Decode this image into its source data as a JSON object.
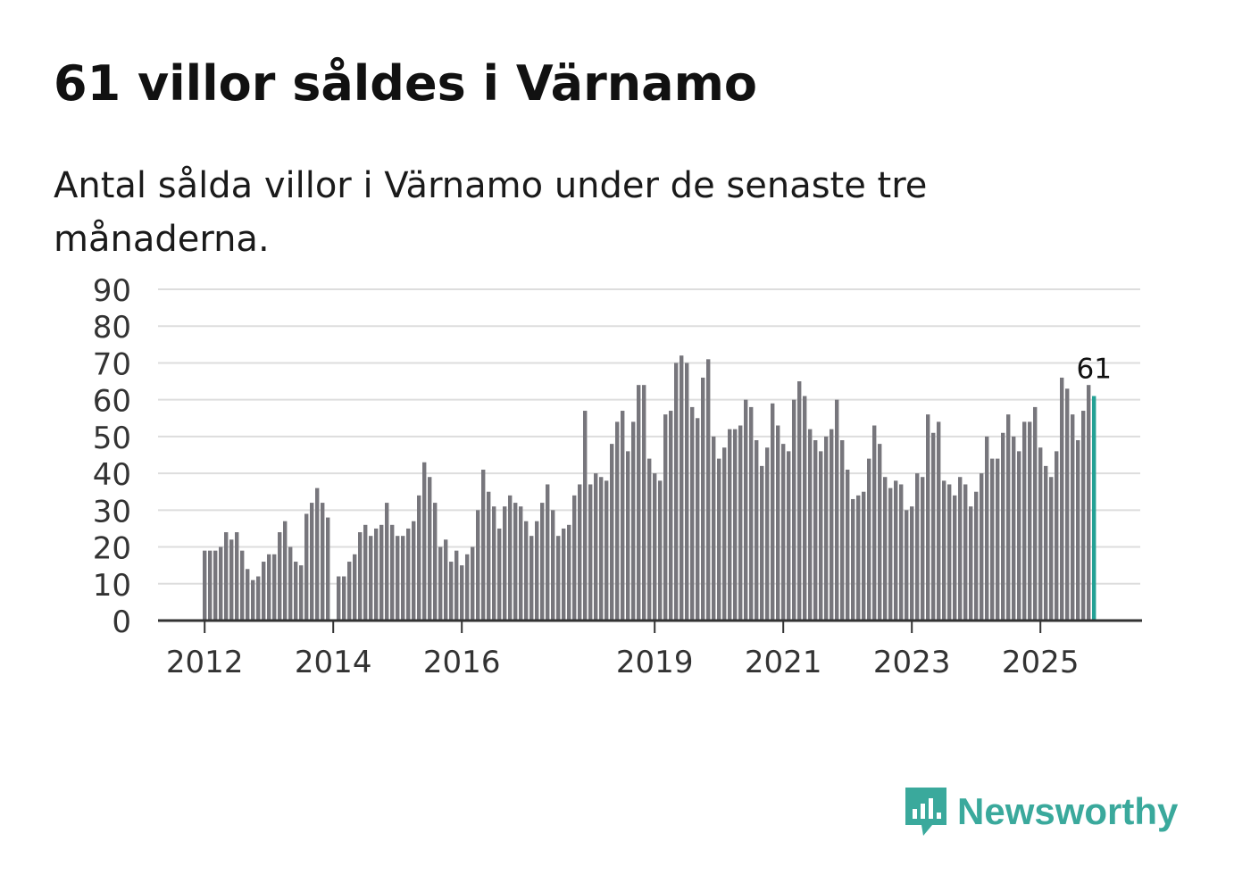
{
  "title": "61 villor såldes i Värnamo",
  "subtitle": "Antal sålda villor i Värnamo under de senaste tre månaderna.",
  "brand": {
    "name": "Newsworthy",
    "color": "#3aa99c"
  },
  "colors": {
    "bar": "#77767c",
    "highlight": "#24a195",
    "grid": "#dddddd",
    "axis": "#333333"
  },
  "chart_data": {
    "type": "bar",
    "title": "61 villor såldes i Värnamo",
    "xlabel": "",
    "ylabel": "",
    "ylim": [
      0,
      90
    ],
    "yticks": [
      0,
      10,
      20,
      30,
      40,
      50,
      60,
      70,
      80,
      90
    ],
    "xticks": [
      {
        "label": "2012",
        "index": 0
      },
      {
        "label": "2014",
        "index": 24
      },
      {
        "label": "2016",
        "index": 48
      },
      {
        "label": "2019",
        "index": 84
      },
      {
        "label": "2021",
        "index": 108
      },
      {
        "label": "2023",
        "index": 132
      },
      {
        "label": "2025",
        "index": 156
      }
    ],
    "start": "2012-01",
    "values": [
      19,
      19,
      19,
      20,
      24,
      22,
      24,
      19,
      14,
      11,
      12,
      16,
      18,
      18,
      24,
      27,
      20,
      16,
      15,
      29,
      32,
      36,
      32,
      28,
      0,
      12,
      12,
      16,
      18,
      24,
      26,
      23,
      25,
      26,
      32,
      26,
      23,
      23,
      25,
      27,
      34,
      43,
      39,
      32,
      20,
      22,
      16,
      19,
      15,
      18,
      20,
      30,
      41,
      35,
      31,
      25,
      31,
      34,
      32,
      31,
      27,
      23,
      27,
      32,
      37,
      30,
      23,
      25,
      26,
      34,
      37,
      57,
      37,
      40,
      39,
      38,
      48,
      54,
      57,
      46,
      54,
      64,
      64,
      44,
      40,
      38,
      56,
      57,
      70,
      72,
      70,
      58,
      55,
      66,
      71,
      50,
      44,
      47,
      52,
      52,
      53,
      60,
      58,
      49,
      42,
      47,
      59,
      53,
      48,
      46,
      60,
      65,
      61,
      52,
      49,
      46,
      50,
      52,
      60,
      49,
      41,
      33,
      34,
      35,
      44,
      53,
      48,
      39,
      36,
      38,
      37,
      30,
      31,
      40,
      39,
      56,
      51,
      54,
      38,
      37,
      34,
      39,
      37,
      31,
      35,
      40,
      50,
      44,
      44,
      51,
      56,
      50,
      46,
      54,
      54,
      58,
      47,
      42,
      39,
      46,
      66,
      63,
      56,
      49,
      57,
      64,
      61
    ],
    "highlight_last": true,
    "annotation": {
      "label": "61",
      "value": 61
    }
  }
}
